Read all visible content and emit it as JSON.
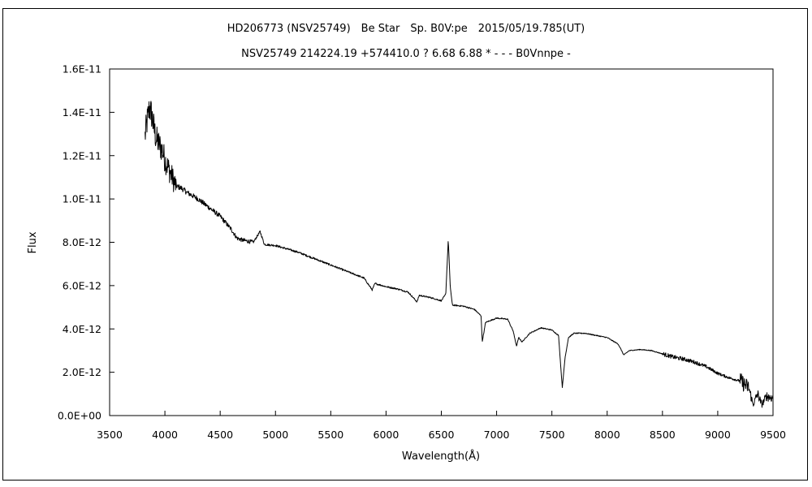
{
  "chart_data": {
    "type": "line",
    "title": "HD206773 (NSV25749)　Be Star　Sp. B0V:pe　2015/05/19.785(UT)",
    "subtitle": "NSV25749 214224.19 +574410.0 ? 6.68 6.88 * - - - B0Vnnpe -",
    "xlabel": "Wavelength(Å)",
    "ylabel": "Flux",
    "xlim": [
      3500,
      9500
    ],
    "ylim": [
      0,
      1.6e-11
    ],
    "grid": false,
    "x_ticks": [
      "3500",
      "4000",
      "4500",
      "5000",
      "5500",
      "6000",
      "6500",
      "7000",
      "7500",
      "8000",
      "8500",
      "9000",
      "9500"
    ],
    "y_ticks": [
      "0.0E+00",
      "2.0E-12",
      "4.0E-12",
      "6.0E-12",
      "8.0E-12",
      "1.0E-11",
      "1.2E-11",
      "1.4E-11",
      "1.6E-11"
    ],
    "series": [
      {
        "color": "#000000",
        "x": [
          3820,
          3840,
          3860,
          3880,
          3900,
          3920,
          3950,
          3980,
          4000,
          4050,
          4100,
          4150,
          4200,
          4300,
          4400,
          4500,
          4600,
          4650,
          4700,
          4800,
          4861,
          4900,
          5000,
          5100,
          5200,
          5300,
          5400,
          5500,
          5600,
          5700,
          5800,
          5875,
          5900,
          6000,
          6100,
          6200,
          6280,
          6300,
          6400,
          6500,
          6540,
          6563,
          6580,
          6600,
          6700,
          6800,
          6860,
          6870,
          6900,
          7000,
          7100,
          7150,
          7180,
          7200,
          7230,
          7300,
          7400,
          7500,
          7560,
          7594,
          7620,
          7650,
          7700,
          7800,
          7900,
          8000,
          8100,
          8150,
          8200,
          8300,
          8400,
          8500,
          8600,
          8700,
          8800,
          8900,
          9000,
          9100,
          9200,
          9280,
          9320,
          9360,
          9400,
          9440,
          9500
        ],
        "y": [
          1.29e-11,
          1.36e-11,
          1.42e-11,
          1.39e-11,
          1.33e-11,
          1.28e-11,
          1.25e-11,
          1.22e-11,
          1.18e-11,
          1.12e-11,
          1.06e-11,
          1.05e-11,
          1.03e-11,
          1e-11,
          9.6e-12,
          9.2e-12,
          8.6e-12,
          8.2e-12,
          8.1e-12,
          8e-12,
          8.5e-12,
          7.9e-12,
          7.85e-12,
          7.7e-12,
          7.55e-12,
          7.35e-12,
          7.15e-12,
          6.95e-12,
          6.75e-12,
          6.55e-12,
          6.35e-12,
          5.8e-12,
          6.1e-12,
          5.95e-12,
          5.85e-12,
          5.7e-12,
          5.25e-12,
          5.55e-12,
          5.45e-12,
          5.3e-12,
          5.6e-12,
          8.1e-12,
          6e-12,
          5.1e-12,
          5.05e-12,
          4.9e-12,
          4.6e-12,
          3.4e-12,
          4.3e-12,
          4.5e-12,
          4.45e-12,
          3.9e-12,
          3.2e-12,
          3.6e-12,
          3.4e-12,
          3.8e-12,
          4.05e-12,
          3.95e-12,
          3.7e-12,
          1.3e-12,
          2.7e-12,
          3.6e-12,
          3.8e-12,
          3.8e-12,
          3.7e-12,
          3.6e-12,
          3.3e-12,
          2.8e-12,
          3e-12,
          3.05e-12,
          3e-12,
          2.85e-12,
          2.7e-12,
          2.6e-12,
          2.45e-12,
          2.25e-12,
          1.95e-12,
          1.75e-12,
          1.6e-12,
          1.3e-12,
          5e-13,
          1e-12,
          5e-13,
          9e-13,
          8e-13
        ]
      }
    ]
  }
}
